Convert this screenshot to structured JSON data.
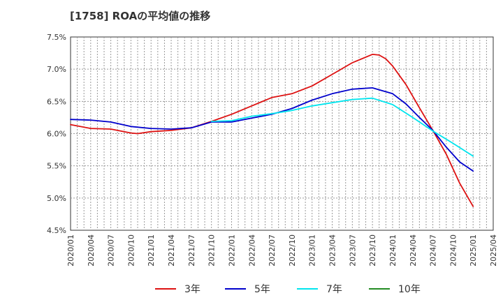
{
  "chart_data": {
    "type": "line",
    "title": "[1758]  ROAの平均値の推移",
    "xlabel": "",
    "ylabel": "",
    "ylim": [
      4.5,
      7.5
    ],
    "yticks": [
      "7.5%",
      "7.0%",
      "6.5%",
      "6.0%",
      "5.5%",
      "5.0%",
      "4.5%"
    ],
    "ytick_values": [
      7.5,
      7.0,
      6.5,
      6.0,
      5.5,
      5.0,
      4.5
    ],
    "xticks": [
      "2020/01",
      "2020/04",
      "2020/07",
      "2020/10",
      "2021/01",
      "2021/04",
      "2021/07",
      "2021/10",
      "2022/01",
      "2022/04",
      "2022/07",
      "2022/10",
      "2023/01",
      "2023/04",
      "2023/07",
      "2023/10",
      "2024/01",
      "2024/04",
      "2024/07",
      "2024/10",
      "2025/01",
      "2025/04"
    ],
    "x_start": "2020/01",
    "x_end": "2025/04",
    "grid": true,
    "legend_position": "bottom",
    "series": [
      {
        "name": "3年",
        "color": "#dd1111",
        "x": [
          "2020/01",
          "2020/04",
          "2020/07",
          "2020/10",
          "2020/11",
          "2021/01",
          "2021/04",
          "2021/07",
          "2021/10",
          "2022/01",
          "2022/04",
          "2022/07",
          "2022/10",
          "2023/01",
          "2023/04",
          "2023/07",
          "2023/10",
          "2023/11",
          "2023/12",
          "2024/01",
          "2024/03",
          "2024/05",
          "2024/07",
          "2024/09",
          "2024/11",
          "2025/01"
        ],
        "values": [
          6.14,
          6.08,
          6.07,
          6.01,
          6.0,
          6.03,
          6.05,
          6.09,
          6.19,
          6.3,
          6.43,
          6.56,
          6.62,
          6.74,
          6.92,
          7.1,
          7.23,
          7.22,
          7.16,
          7.05,
          6.76,
          6.4,
          6.05,
          5.68,
          5.23,
          4.87
        ]
      },
      {
        "name": "5年",
        "color": "#0000cc",
        "x": [
          "2020/01",
          "2020/04",
          "2020/07",
          "2020/10",
          "2021/01",
          "2021/04",
          "2021/07",
          "2021/10",
          "2022/01",
          "2022/04",
          "2022/07",
          "2022/10",
          "2023/01",
          "2023/04",
          "2023/07",
          "2023/10",
          "2024/01",
          "2024/03",
          "2024/05",
          "2024/07",
          "2024/09",
          "2024/11",
          "2025/01"
        ],
        "values": [
          6.22,
          6.21,
          6.18,
          6.11,
          6.08,
          6.07,
          6.09,
          6.18,
          6.18,
          6.24,
          6.3,
          6.39,
          6.52,
          6.62,
          6.69,
          6.71,
          6.62,
          6.46,
          6.25,
          6.05,
          5.79,
          5.56,
          5.42
        ]
      },
      {
        "name": "7年",
        "color": "#00e5ee",
        "x": [
          "2021/10",
          "2022/01",
          "2022/04",
          "2022/07",
          "2022/10",
          "2023/01",
          "2023/04",
          "2023/07",
          "2023/10",
          "2024/01",
          "2024/04",
          "2024/07",
          "2024/10",
          "2025/01"
        ],
        "values": [
          6.19,
          6.2,
          6.27,
          6.31,
          6.36,
          6.43,
          6.48,
          6.53,
          6.55,
          6.45,
          6.25,
          6.04,
          5.85,
          5.65
        ]
      },
      {
        "name": "10年",
        "color": "#228b22",
        "x": [],
        "values": []
      }
    ]
  }
}
